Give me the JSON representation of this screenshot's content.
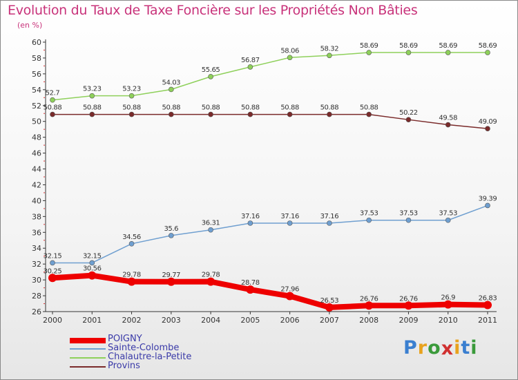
{
  "header": {
    "title": "Evolution du Taux de Taxe Foncière sur les Propriétés Non Bâties",
    "unit": "(en %)"
  },
  "logo": {
    "letters": [
      "P",
      "r",
      "o",
      "x",
      "i",
      "t",
      "i"
    ],
    "colors": [
      "#3a7fd0",
      "#e8a21e",
      "#3a9a3a",
      "#d03030",
      "#e8a21e",
      "#3a7fd0",
      "#3a9a3a"
    ]
  },
  "chart_data": {
    "type": "line",
    "title": "Evolution du Taux de Taxe Foncière sur les Propriétés Non Bâties",
    "ylabel": "(en %)",
    "x": [
      "2000",
      "2001",
      "2002",
      "2003",
      "2004",
      "2005",
      "2006",
      "2007",
      "2008",
      "2009",
      "2010",
      "2011"
    ],
    "ylim": [
      26,
      60
    ],
    "yticks": [
      26,
      28,
      30,
      32,
      34,
      36,
      38,
      40,
      42,
      44,
      46,
      48,
      50,
      52,
      54,
      56,
      58,
      60
    ],
    "grid": false,
    "legend_position": "bottom-left",
    "series": [
      {
        "name": "POIGNY",
        "color": "#ee0000",
        "width": 8,
        "marker": 6,
        "values": [
          30.25,
          30.56,
          29.78,
          29.77,
          29.78,
          28.78,
          27.96,
          26.53,
          26.76,
          26.76,
          26.9,
          26.83
        ],
        "labels": [
          "30.25",
          "30.56",
          "29.78",
          "29.77",
          "29.78",
          "28.78",
          "27.96",
          "26.53",
          "26.76",
          "26.76",
          "26.9",
          "26.83"
        ]
      },
      {
        "name": "Sainte-Colombe",
        "color": "#6f9fd0",
        "width": 1.5,
        "marker": 3.5,
        "values": [
          32.15,
          32.15,
          34.56,
          35.6,
          36.31,
          37.16,
          37.16,
          37.16,
          37.53,
          37.53,
          37.53,
          39.39
        ],
        "labels": [
          "32.15",
          "32.15",
          "34.56",
          "35.6",
          "36.31",
          "37.16",
          "37.16",
          "37.16",
          "37.53",
          "37.53",
          "37.53",
          "39.39"
        ]
      },
      {
        "name": "Chalautre-la-Petite",
        "color": "#8ed05a",
        "width": 1.5,
        "marker": 3.5,
        "values": [
          52.7,
          53.23,
          53.23,
          54.03,
          55.65,
          56.87,
          58.06,
          58.32,
          58.69,
          58.69,
          58.69,
          58.69
        ],
        "labels": [
          "52.7",
          "53.23",
          "53.23",
          "54.03",
          "55.65",
          "56.87",
          "58.06",
          "58.32",
          "58.69",
          "58.69",
          "58.69",
          "58.69"
        ]
      },
      {
        "name": "Provins",
        "color": "#7a2a2a",
        "width": 1.5,
        "marker": 3.5,
        "values": [
          50.88,
          50.88,
          50.88,
          50.88,
          50.88,
          50.88,
          50.88,
          50.88,
          50.88,
          50.22,
          49.58,
          49.09
        ],
        "labels": [
          "50.88",
          "50.88",
          "50.88",
          "50.88",
          "50.88",
          "50.88",
          "50.88",
          "50.88",
          "50.88",
          "50.22",
          "49.58",
          "49.09"
        ]
      }
    ]
  }
}
